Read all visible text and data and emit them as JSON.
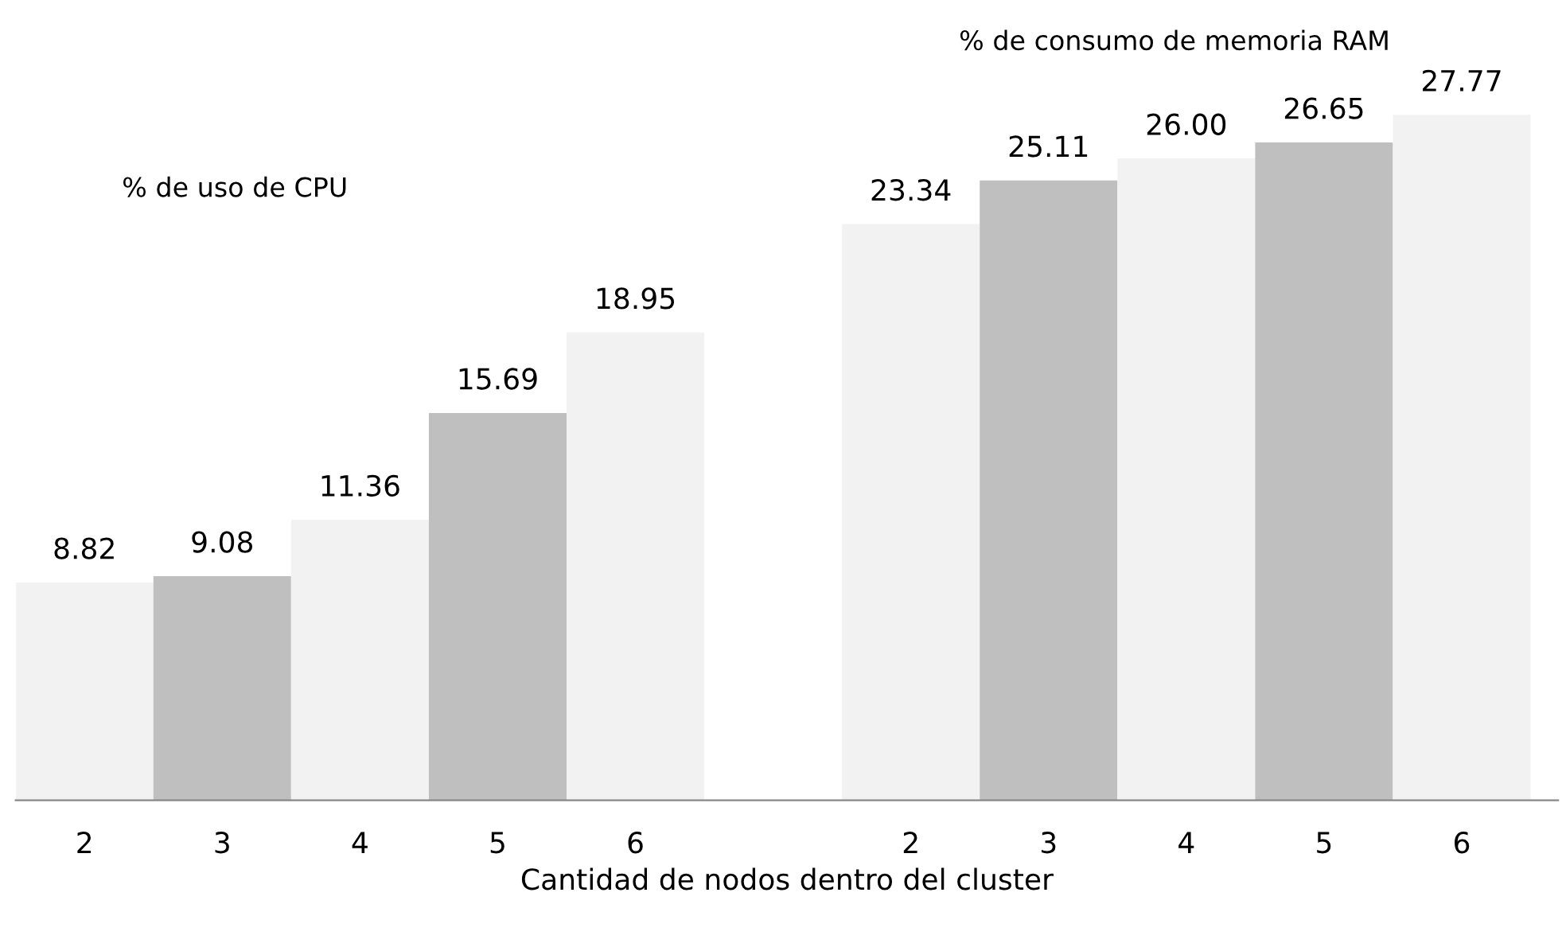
{
  "chart_data": {
    "type": "bar",
    "xlabel": "Cantidad de nodos dentro del cluster",
    "categories": [
      "2",
      "3",
      "4",
      "5",
      "6",
      null,
      "2",
      "3",
      "4",
      "5",
      "6"
    ],
    "values": [
      8.82,
      9.08,
      11.36,
      15.69,
      18.95,
      null,
      23.34,
      25.11,
      26.0,
      26.65,
      27.77
    ],
    "value_labels": [
      "8.82",
      "9.08",
      "11.36",
      "15.69",
      "18.95",
      null,
      "23.34",
      "25.11",
      "26.00",
      "26.65",
      "27.77"
    ],
    "colors": [
      "#f2f2f2",
      "#bfbfbf",
      "#f2f2f2",
      "#bfbfbf",
      "#f2f2f2",
      "#f2f2f2",
      "#f2f2f2",
      "#bfbfbf",
      "#f2f2f2",
      "#bfbfbf",
      "#f2f2f2"
    ],
    "annotations": [
      "% de uso de CPU",
      "% de consumo de memoria RAM"
    ],
    "grid": false,
    "legend": false
  }
}
